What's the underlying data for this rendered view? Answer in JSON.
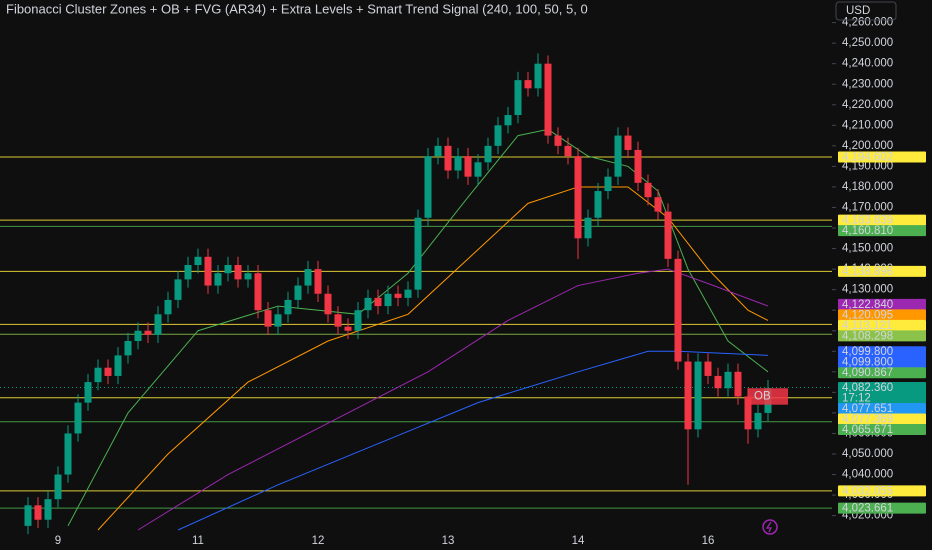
{
  "chart_data": {
    "type": "candlestick",
    "title": "Fibonacci Cluster Zones + OB + FVG (AR34) + Extra Levels + Smart Trend Signal (240, 100, 50, 5, 0",
    "currency": "USD",
    "up_color": "#089981",
    "down_color": "#f23645",
    "ylim": [
      4013,
      4271
    ],
    "yticks": [
      {
        "value": 4020,
        "label": "4,020.000"
      },
      {
        "value": 4030,
        "label": "4,030.000"
      },
      {
        "value": 4040,
        "label": "4,040.000"
      },
      {
        "value": 4050,
        "label": "4,050.000"
      },
      {
        "value": 4060,
        "label": "4,060.000"
      },
      {
        "value": 4070,
        "label": "4,070.000"
      },
      {
        "value": 4080,
        "label": "4,080.000"
      },
      {
        "value": 4090,
        "label": "4,090.000"
      },
      {
        "value": 4100,
        "label": "4,100.000"
      },
      {
        "value": 4110,
        "label": "4,110.000"
      },
      {
        "value": 4120,
        "label": "4,120.000"
      },
      {
        "value": 4130,
        "label": "4,130.000"
      },
      {
        "value": 4140,
        "label": "4,140.000"
      },
      {
        "value": 4150,
        "label": "4,150.000"
      },
      {
        "value": 4160,
        "label": "4,160.000"
      },
      {
        "value": 4170,
        "label": "4,170.000"
      },
      {
        "value": 4180,
        "label": "4,180.000"
      },
      {
        "value": 4190,
        "label": "4,190.000"
      },
      {
        "value": 4200,
        "label": "4,200.000"
      },
      {
        "value": 4210,
        "label": "4,210.000"
      },
      {
        "value": 4220,
        "label": "4,220.000"
      },
      {
        "value": 4230,
        "label": "4,230.000"
      },
      {
        "value": 4240,
        "label": "4,240.000"
      },
      {
        "value": 4250,
        "label": "4,250.000"
      },
      {
        "value": 4260,
        "label": "4,260.000"
      }
    ],
    "categories": [
      null,
      null,
      null,
      "9",
      null,
      null,
      null,
      null,
      null,
      null,
      null,
      null,
      null,
      null,
      null,
      null,
      null,
      "11",
      null,
      null,
      null,
      null,
      null,
      null,
      null,
      null,
      null,
      null,
      null,
      "12",
      null,
      null,
      null,
      null,
      null,
      null,
      null,
      null,
      null,
      null,
      null,
      null,
      "13",
      null,
      null,
      null,
      null,
      null,
      null,
      null,
      null,
      null,
      null,
      null,
      null,
      "14",
      null,
      null,
      null,
      null,
      null,
      null,
      null,
      null,
      null,
      null,
      null,
      null,
      "16",
      null,
      null,
      null,
      null,
      null,
      null
    ],
    "candles": [
      [
        4015,
        4029,
        4011,
        4025
      ],
      [
        4025,
        4029,
        4014,
        4018
      ],
      [
        4018,
        4032,
        4014,
        4028
      ],
      [
        4028,
        4044,
        4024,
        4040
      ],
      [
        4040,
        4064,
        4036,
        4060
      ],
      [
        4060,
        4079,
        4056,
        4075
      ],
      [
        4075,
        4089,
        4071,
        4085
      ],
      [
        4085,
        4096,
        4081,
        4092
      ],
      [
        4092,
        4096,
        4084,
        4088
      ],
      [
        4088,
        4102,
        4084,
        4098
      ],
      [
        4098,
        4109,
        4094,
        4105
      ],
      [
        4105,
        4114,
        4101,
        4110
      ],
      [
        4110,
        4114,
        4104,
        4108
      ],
      [
        4108,
        4122,
        4104,
        4118
      ],
      [
        4118,
        4129,
        4114,
        4125
      ],
      [
        4125,
        4139,
        4121,
        4135
      ],
      [
        4135,
        4146,
        4131,
        4142
      ],
      [
        4142,
        4150,
        4138,
        4146
      ],
      [
        4146,
        4150,
        4128,
        4132
      ],
      [
        4132,
        4142,
        4128,
        4138
      ],
      [
        4138,
        4146,
        4134,
        4142
      ],
      [
        4142,
        4146,
        4131,
        4135
      ],
      [
        4135,
        4142,
        4131,
        4138
      ],
      [
        4138,
        4142,
        4116,
        4120
      ],
      [
        4120,
        4124,
        4108,
        4112
      ],
      [
        4112,
        4122,
        4108,
        4118
      ],
      [
        4118,
        4129,
        4114,
        4125
      ],
      [
        4125,
        4136,
        4121,
        4132
      ],
      [
        4132,
        4144,
        4128,
        4140
      ],
      [
        4140,
        4144,
        4124,
        4128
      ],
      [
        4128,
        4132,
        4114,
        4118
      ],
      [
        4118,
        4122,
        4108,
        4112
      ],
      [
        4112,
        4116,
        4106,
        4110
      ],
      [
        4110,
        4124,
        4106,
        4120
      ],
      [
        4120,
        4130,
        4116,
        4126
      ],
      [
        4126,
        4130,
        4118,
        4122
      ],
      [
        4122,
        4132,
        4118,
        4128
      ],
      [
        4128,
        4132,
        4122,
        4126
      ],
      [
        4126,
        4134,
        4122,
        4130
      ],
      [
        4130,
        4169,
        4126,
        4165
      ],
      [
        4165,
        4199,
        4161,
        4195
      ],
      [
        4195,
        4204,
        4191,
        4200
      ],
      [
        4200,
        4204,
        4184,
        4188
      ],
      [
        4188,
        4199,
        4184,
        4195
      ],
      [
        4195,
        4199,
        4181,
        4185
      ],
      [
        4185,
        4196,
        4181,
        4192
      ],
      [
        4192,
        4204,
        4188,
        4200
      ],
      [
        4200,
        4214,
        4196,
        4210
      ],
      [
        4210,
        4219,
        4206,
        4215
      ],
      [
        4215,
        4236,
        4211,
        4232
      ],
      [
        4232,
        4236,
        4224,
        4228
      ],
      [
        4228,
        4245,
        4224,
        4240
      ],
      [
        4240,
        4244,
        4201,
        4205
      ],
      [
        4205,
        4209,
        4196,
        4200
      ],
      [
        4200,
        4204,
        4191,
        4195
      ],
      [
        4195,
        4199,
        4145,
        4155
      ],
      [
        4155,
        4169,
        4151,
        4165
      ],
      [
        4165,
        4182,
        4161,
        4178
      ],
      [
        4178,
        4189,
        4174,
        4185
      ],
      [
        4185,
        4209,
        4181,
        4205
      ],
      [
        4205,
        4209,
        4194,
        4198
      ],
      [
        4198,
        4202,
        4178,
        4182
      ],
      [
        4182,
        4186,
        4171,
        4175
      ],
      [
        4175,
        4179,
        4164,
        4168
      ],
      [
        4168,
        4172,
        4141,
        4145
      ],
      [
        4145,
        4149,
        4091,
        4095
      ],
      [
        4095,
        4099,
        4035,
        4062
      ],
      [
        4062,
        4099,
        4058,
        4095
      ],
      [
        4095,
        4099,
        4084,
        4088
      ],
      [
        4088,
        4092,
        4078,
        4082
      ],
      [
        4082,
        4094,
        4078,
        4090
      ],
      [
        4090,
        4094,
        4074,
        4078
      ],
      [
        4078,
        4082,
        4055,
        4062
      ],
      [
        4062,
        4074,
        4058,
        4070
      ],
      [
        4070,
        4086,
        4066,
        4082
      ]
    ],
    "series": [
      {
        "color": "#4caf50",
        "x": [
          4,
          10,
          17,
          25,
          33,
          38,
          44,
          49,
          52,
          56,
          60,
          63,
          66,
          70,
          74
        ],
        "values": [
          4015,
          4070,
          4110,
          4122,
          4118,
          4138,
          4175,
          4205,
          4208,
          4195,
          4190,
          4178,
          4140,
          4105,
          4090
        ]
      },
      {
        "color": "#ff9800",
        "x": [
          7,
          14,
          22,
          30,
          38,
          44,
          50,
          55,
          60,
          64,
          68,
          72,
          74
        ],
        "values": [
          4013,
          4050,
          4085,
          4105,
          4118,
          4145,
          4172,
          4180,
          4180,
          4165,
          4140,
          4120,
          4115
        ]
      },
      {
        "color": "#9c27b0",
        "x": [
          11,
          20,
          30,
          40,
          48,
          55,
          61,
          64,
          68,
          74
        ],
        "values": [
          4013,
          4040,
          4065,
          4090,
          4115,
          4132,
          4138,
          4140,
          4133,
          4122
        ]
      },
      {
        "color": "#2962ff",
        "x": [
          15,
          25,
          35,
          45,
          55,
          62,
          65,
          74
        ],
        "values": [
          4013,
          4035,
          4055,
          4075,
          4090,
          4100,
          4100,
          4098
        ]
      }
    ],
    "price_labels": [
      {
        "value": 4194.602,
        "label": "4,194.602",
        "color": "#ffeb3b",
        "line": true
      },
      {
        "value": 4163.839,
        "label": "4,163.839",
        "color": "#ffeb3b",
        "line": true
      },
      {
        "value": 4160.81,
        "label": "4,160.810",
        "color": "#4caf50",
        "line": true
      },
      {
        "value": 4138.896,
        "label": "4,138.896",
        "color": "#ffeb3b",
        "line": true
      },
      {
        "value": 4122.84,
        "label": "4,122.840",
        "color": "#9c27b0",
        "line": false
      },
      {
        "value": 4120.095,
        "label": "4,120.095",
        "color": "#ff9800",
        "line": false
      },
      {
        "value": 4113.121,
        "label": "4,113.121",
        "color": "#ffeb3b",
        "line": true
      },
      {
        "value": 4108.298,
        "label": "4,108.298",
        "color": "#8bc34a",
        "line": true
      },
      {
        "value": 4099.8,
        "label": "4,099.800",
        "color": "#2962ff",
        "line": false
      },
      {
        "value": 4099.8,
        "label": "4,099.800",
        "color": "#2962ff",
        "line": false
      },
      {
        "value": 4090.867,
        "label": "4,090.867",
        "color": "#4caf50",
        "line": false
      },
      {
        "value": 4082.36,
        "label": "4,082.360",
        "color": "#089981",
        "line": false
      },
      {
        "value": 4077.651,
        "label": "4,077.651",
        "color": "#2196f3",
        "line": false
      },
      {
        "value": 4077.369,
        "label": "4,077.369",
        "color": "#ffeb3b",
        "line": true
      },
      {
        "value": 4065.671,
        "label": "4,065.671",
        "color": "#4caf50",
        "line": true
      },
      {
        "value": 4032.055,
        "label": "4,032.055",
        "color": "#ffeb3b",
        "line": true
      },
      {
        "value": 4023.661,
        "label": "4,023.661",
        "color": "#4caf50",
        "line": true
      }
    ],
    "current_price": 4082.36,
    "countdown": "17:12",
    "order_block": {
      "label": "OB",
      "top": 4082,
      "bottom": 4074,
      "x0": 72,
      "x1": 76
    }
  }
}
